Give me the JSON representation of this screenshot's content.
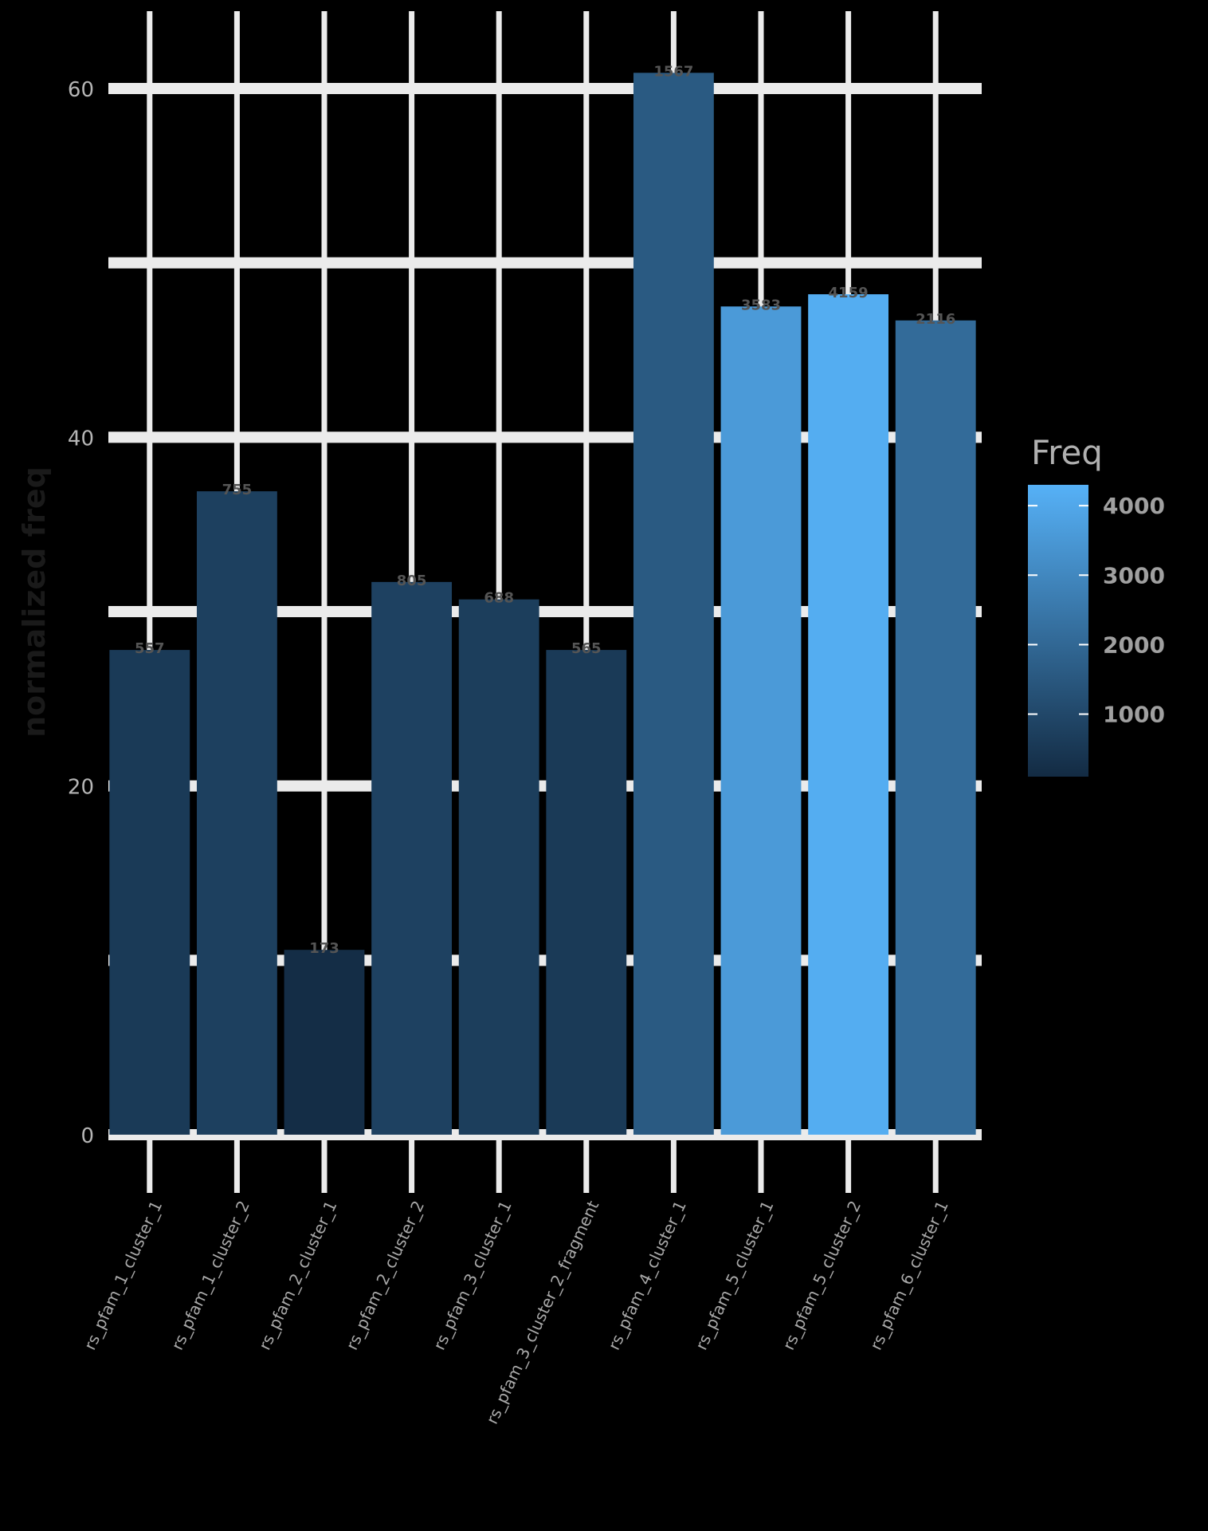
{
  "chart_data": {
    "type": "bar",
    "ylabel": "normalized freq",
    "ylim": [
      0,
      60
    ],
    "y_ticks": [
      "0",
      "20",
      "40",
      "60"
    ],
    "categories": [
      "rs_pfam_1_cluster_1",
      "rs_pfam_1_cluster_2",
      "rs_pfam_2_cluster_1",
      "rs_pfam_2_cluster_2",
      "rs_pfam_3_cluster_1",
      "rs_pfam_3_cluster_2_fragment",
      "rs_pfam_4_cluster_1",
      "rs_pfam_5_cluster_1",
      "rs_pfam_5_cluster_2",
      "rs_pfam_6_cluster_1"
    ],
    "values": [
      27.8,
      36.9,
      10.6,
      31.7,
      30.7,
      27.8,
      60.9,
      47.5,
      48.2,
      46.7
    ],
    "bar_labels": [
      "557",
      "755",
      "173",
      "805",
      "688",
      "565",
      "1567",
      "3583",
      "4159",
      "2116"
    ],
    "freq": [
      557,
      755,
      173,
      805,
      688,
      565,
      1567,
      3583,
      4159,
      2116
    ],
    "legend": {
      "title": "Freq",
      "ticks": [
        "4000",
        "3000",
        "2000",
        "1000"
      ],
      "tick_values": [
        4000,
        3000,
        2000,
        1000
      ],
      "min": 100,
      "max": 4300,
      "color_low": "#132b43",
      "color_high": "#56b1f7",
      "placement": "right"
    },
    "grid": true
  }
}
